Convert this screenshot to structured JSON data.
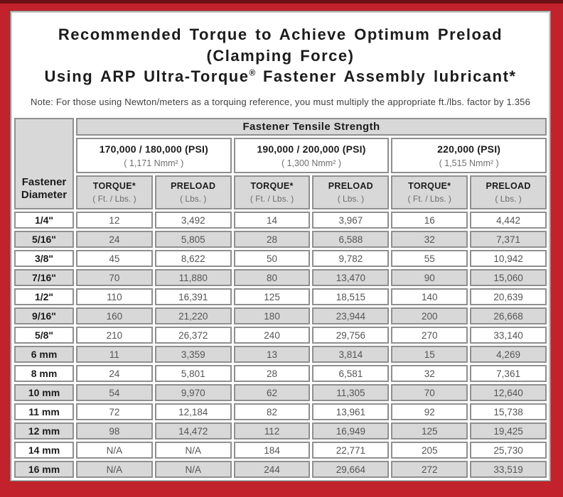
{
  "title": {
    "line1": "Recommended Torque to Achieve Optimum Preload (Clamping Force)",
    "line2_prefix": "Using ARP Ultra-Torque",
    "line2_reg": "®",
    "line2_suffix": " Fastener Assembly lubricant*"
  },
  "note": "Note: For those using Newton/meters as a torquing reference, you must multiply the appropriate ft./lbs. factor by 1.356",
  "table": {
    "corner_lines": [
      "Fastener",
      "Diameter"
    ],
    "tensile_header": "Fastener Tensile Strength",
    "groups": [
      {
        "psi": "170,000 / 180,000 (PSI)",
        "nmm": "( 1,171 Nmm² )"
      },
      {
        "psi": "190,000 / 200,000 (PSI)",
        "nmm": "( 1,300 Nmm² )"
      },
      {
        "psi": "220,000 (PSI)",
        "nmm": "( 1,515 Nmm² )"
      }
    ],
    "sub_headers": [
      {
        "key": "torque",
        "title": "TORQUE*",
        "unit": "( Ft. / Lbs. )"
      },
      {
        "key": "preload",
        "title": "PRELOAD",
        "unit": "( Lbs. )"
      }
    ],
    "rows": [
      {
        "diameter": "1/4\"",
        "values": [
          "12",
          "3,492",
          "14",
          "3,967",
          "16",
          "4,442"
        ]
      },
      {
        "diameter": "5/16\"",
        "values": [
          "24",
          "5,805",
          "28",
          "6,588",
          "32",
          "7,371"
        ]
      },
      {
        "diameter": "3/8\"",
        "values": [
          "45",
          "8,622",
          "50",
          "9,782",
          "55",
          "10,942"
        ]
      },
      {
        "diameter": "7/16\"",
        "values": [
          "70",
          "11,880",
          "80",
          "13,470",
          "90",
          "15,060"
        ]
      },
      {
        "diameter": "1/2\"",
        "values": [
          "110",
          "16,391",
          "125",
          "18,515",
          "140",
          "20,639"
        ]
      },
      {
        "diameter": "9/16\"",
        "values": [
          "160",
          "21,220",
          "180",
          "23,944",
          "200",
          "26,668"
        ]
      },
      {
        "diameter": "5/8\"",
        "values": [
          "210",
          "26,372",
          "240",
          "29,756",
          "270",
          "33,140"
        ]
      },
      {
        "diameter": "6 mm",
        "values": [
          "11",
          "3,359",
          "13",
          "3,814",
          "15",
          "4,269"
        ]
      },
      {
        "diameter": "8 mm",
        "values": [
          "24",
          "5,801",
          "28",
          "6,581",
          "32",
          "7,361"
        ]
      },
      {
        "diameter": "10 mm",
        "values": [
          "54",
          "9,970",
          "62",
          "11,305",
          "70",
          "12,640"
        ]
      },
      {
        "diameter": "11 mm",
        "values": [
          "72",
          "12,184",
          "82",
          "13,961",
          "92",
          "15,738"
        ]
      },
      {
        "diameter": "12 mm",
        "values": [
          "98",
          "14,472",
          "112",
          "16,949",
          "125",
          "19,425"
        ]
      },
      {
        "diameter": "14 mm",
        "values": [
          "N/A",
          "N/A",
          "184",
          "22,771",
          "205",
          "25,730"
        ]
      },
      {
        "diameter": "16 mm",
        "values": [
          "N/A",
          "N/A",
          "244",
          "29,664",
          "272",
          "33,519"
        ]
      }
    ]
  },
  "colors": {
    "frame_red": "#c2222b",
    "frame_dark": "#6c1115",
    "panel_white": "#ffffff",
    "cell_gray": "#d8d8d8",
    "border_gray": "#8f8f8f",
    "text_dark": "#1c1c1c",
    "text_gray": "#555555",
    "unit_gray": "#6e6e6e"
  }
}
